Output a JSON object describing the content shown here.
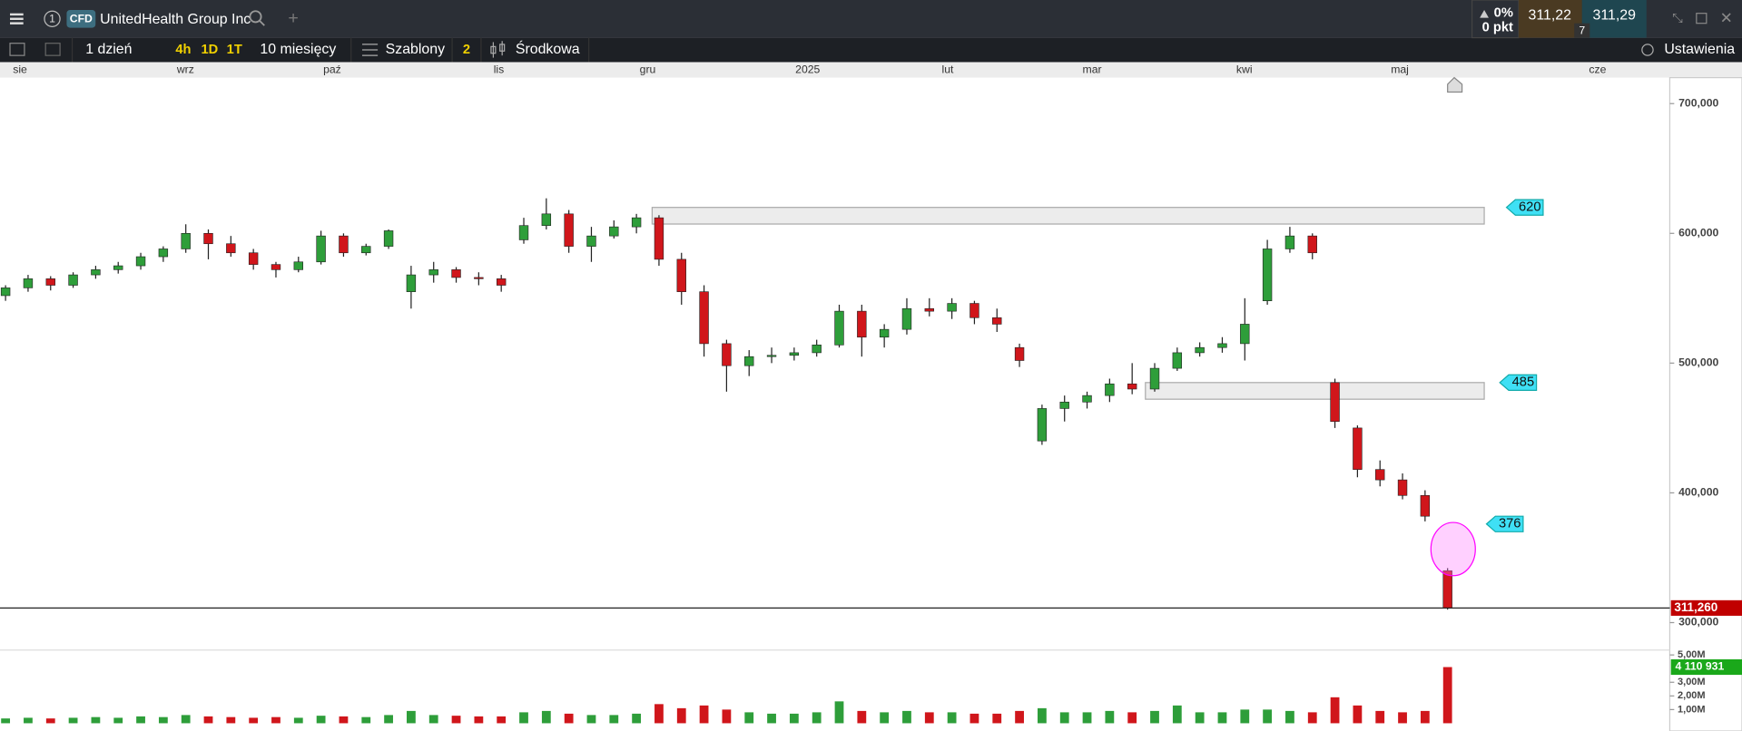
{
  "toolbar": {
    "window_number": "1",
    "instrument_type": "CFD",
    "instrument": "UnitedHealth Group Inc",
    "change_percent": "0%",
    "change_points": "0 pkt",
    "bid": "311,22",
    "ask": "311,29",
    "spread": "7",
    "interval": "1 dzień",
    "quick_intervals": [
      "4h",
      "1D",
      "1T"
    ],
    "range": "10 miesięcy",
    "templates": "Szablony",
    "indicator_count": "2",
    "chart_style": "Środkowa",
    "settings": "Ustawienia"
  },
  "chart_data": {
    "type": "candlestick",
    "month_labels": [
      "sie",
      "wrz",
      "paź",
      "lis",
      "gru",
      "2025",
      "lut",
      "mar",
      "kwi",
      "maj",
      "cze"
    ],
    "open": [
      552,
      558,
      565,
      560,
      568,
      572,
      575,
      582,
      588,
      600,
      592,
      585,
      576,
      572,
      578,
      598,
      585,
      590,
      555,
      568,
      572,
      566,
      565,
      595,
      606,
      615,
      590,
      598,
      605,
      612,
      580,
      555,
      515,
      498,
      505,
      506,
      508,
      514,
      540,
      520,
      526,
      542,
      540,
      546,
      535,
      512,
      440,
      465,
      470,
      475,
      484,
      480,
      496,
      508,
      512,
      515,
      548,
      588,
      598,
      485,
      450,
      418,
      410,
      398,
      340
    ],
    "high": [
      560,
      568,
      567,
      570,
      575,
      578,
      585,
      590,
      607,
      603,
      598,
      588,
      578,
      582,
      602,
      600,
      592,
      603,
      575,
      578,
      574,
      570,
      568,
      612,
      627,
      618,
      605,
      610,
      615,
      614,
      585,
      560,
      518,
      510,
      512,
      512,
      518,
      545,
      545,
      530,
      550,
      550,
      550,
      548,
      542,
      515,
      468,
      475,
      478,
      488,
      500,
      500,
      512,
      516,
      520,
      550,
      595,
      605,
      600,
      488,
      452,
      425,
      415,
      402,
      342
    ],
    "low": [
      548,
      555,
      556,
      558,
      565,
      569,
      572,
      578,
      585,
      580,
      582,
      572,
      566,
      570,
      576,
      582,
      583,
      588,
      542,
      562,
      562,
      560,
      555,
      592,
      603,
      585,
      578,
      596,
      600,
      575,
      545,
      505,
      478,
      490,
      500,
      502,
      505,
      512,
      505,
      512,
      522,
      536,
      534,
      530,
      524,
      497,
      437,
      455,
      465,
      470,
      476,
      478,
      494,
      505,
      508,
      502,
      545,
      585,
      580,
      450,
      412,
      405,
      395,
      378,
      310
    ],
    "close": [
      558,
      565,
      560,
      568,
      572,
      575,
      582,
      588,
      600,
      592,
      585,
      576,
      572,
      578,
      598,
      585,
      590,
      602,
      568,
      572,
      566,
      565,
      560,
      606,
      615,
      590,
      598,
      605,
      612,
      580,
      555,
      515,
      498,
      505,
      506,
      508,
      514,
      540,
      520,
      526,
      542,
      540,
      546,
      535,
      530,
      502,
      465,
      470,
      475,
      484,
      480,
      496,
      508,
      512,
      515,
      530,
      588,
      598,
      585,
      455,
      418,
      410,
      398,
      382,
      311.26
    ],
    "ylim": [
      284,
      720
    ],
    "yticks": [
      {
        "value": 700,
        "label": "700,000"
      },
      {
        "value": 600,
        "label": "600,000"
      },
      {
        "value": 500,
        "label": "500,000"
      },
      {
        "value": 400,
        "label": "400,000"
      },
      {
        "value": 300,
        "label": "300,000"
      }
    ],
    "last_price": {
      "value": 311.26,
      "label": "311,260"
    },
    "levels": [
      620,
      485,
      376
    ],
    "up_color": "#2e9e3a",
    "down_color": "#d0161b",
    "volume": [
      0.35,
      0.4,
      0.35,
      0.4,
      0.45,
      0.4,
      0.5,
      0.45,
      0.6,
      0.5,
      0.45,
      0.4,
      0.45,
      0.4,
      0.55,
      0.5,
      0.45,
      0.6,
      0.9,
      0.6,
      0.55,
      0.5,
      0.5,
      0.8,
      0.9,
      0.7,
      0.6,
      0.6,
      0.7,
      1.4,
      1.1,
      1.3,
      1.0,
      0.8,
      0.7,
      0.7,
      0.8,
      1.6,
      0.9,
      0.8,
      0.9,
      0.8,
      0.8,
      0.7,
      0.7,
      0.9,
      1.1,
      0.8,
      0.8,
      0.9,
      0.8,
      0.9,
      1.3,
      0.8,
      0.8,
      1.0,
      1.0,
      0.9,
      0.8,
      1.9,
      1.3,
      0.9,
      0.8,
      0.9,
      4.110931
    ],
    "volume_ylim": [
      0,
      5.36
    ],
    "volume_yticks": [
      {
        "value": 5,
        "label": "5,00M"
      },
      {
        "value": 3,
        "label": "3,00M"
      },
      {
        "value": 2,
        "label": "2,00M"
      },
      {
        "value": 1,
        "label": "1,00M"
      }
    ],
    "last_volume": {
      "value": 4.110931,
      "label": "4 110 931"
    }
  }
}
